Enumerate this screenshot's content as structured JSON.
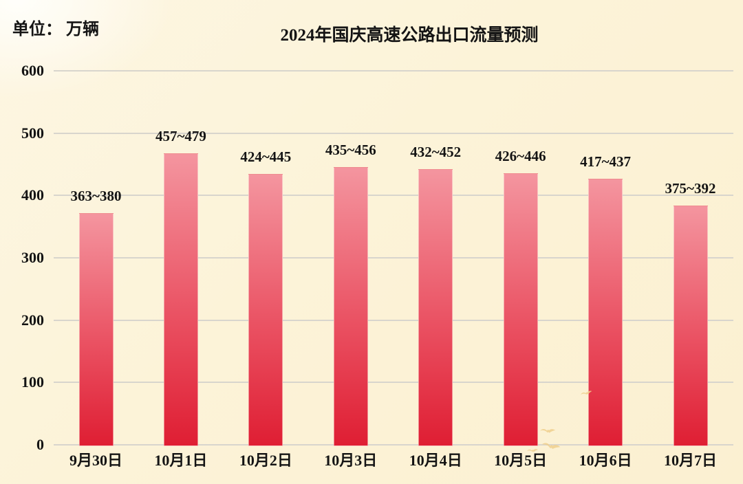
{
  "page": {
    "unit_label": "单位： 万辆"
  },
  "chart_data": {
    "type": "bar",
    "title": "2024年国庆高速公路出口流量预测",
    "unit": "万辆",
    "ylabel": "单位：万辆",
    "xlabel": "",
    "ylim": [
      0,
      600
    ],
    "yticks": [
      0,
      100,
      200,
      300,
      400,
      500,
      600
    ],
    "grid": true,
    "legend_position": "none",
    "categories": [
      "9月30日",
      "10月1日",
      "10月2日",
      "10月3日",
      "10月4日",
      "10月5日",
      "10月6日",
      "10月7日"
    ],
    "bars": [
      {
        "category": "9月30日",
        "range_low": 363,
        "range_high": 380,
        "label": "363~380"
      },
      {
        "category": "10月1日",
        "range_low": 457,
        "range_high": 479,
        "label": "457~479"
      },
      {
        "category": "10月2日",
        "range_low": 424,
        "range_high": 445,
        "label": "424~445"
      },
      {
        "category": "10月3日",
        "range_low": 435,
        "range_high": 456,
        "label": "435~456"
      },
      {
        "category": "10月4日",
        "range_low": 432,
        "range_high": 452,
        "label": "432~452"
      },
      {
        "category": "10月5日",
        "range_low": 426,
        "range_high": 446,
        "label": "426~446"
      },
      {
        "category": "10月6日",
        "range_low": 417,
        "range_high": 437,
        "label": "417~437"
      },
      {
        "category": "10月7日",
        "range_low": 375,
        "range_high": 392,
        "label": "375~392"
      }
    ],
    "colors": {
      "bar_gradient_top": "#f4959f",
      "bar_gradient_mid": "#ea5263",
      "bar_gradient_bottom": "#df1e33",
      "gridline": "#d8d5cd",
      "text": "#141414",
      "background": "#fcf3d8"
    }
  },
  "decor": {
    "bird_icon_color": "#f0cf8d"
  }
}
